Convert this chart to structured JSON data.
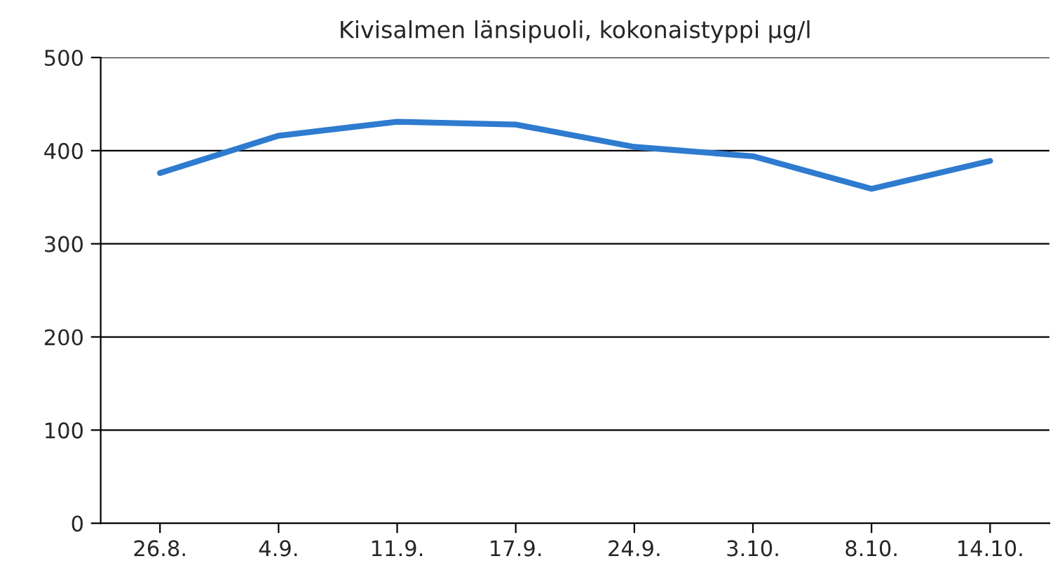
{
  "chart_data": {
    "type": "line",
    "title": "Kivisalmen länsipuoli, kokonaistyppi µg/l",
    "categories": [
      "26.8.",
      "4.9.",
      "11.9.",
      "17.9.",
      "24.9.",
      "3.10.",
      "8.10.",
      "14.10."
    ],
    "series": [
      {
        "color": "#2e7bcf",
        "values": [
          376,
          416,
          431,
          428,
          404,
          394,
          359,
          389
        ]
      }
    ],
    "ylim": [
      0,
      500
    ],
    "yticks": [
      0,
      100,
      200,
      300,
      400,
      500
    ],
    "grid": "y",
    "legend": false,
    "marker": "none",
    "line_style": "solid"
  }
}
